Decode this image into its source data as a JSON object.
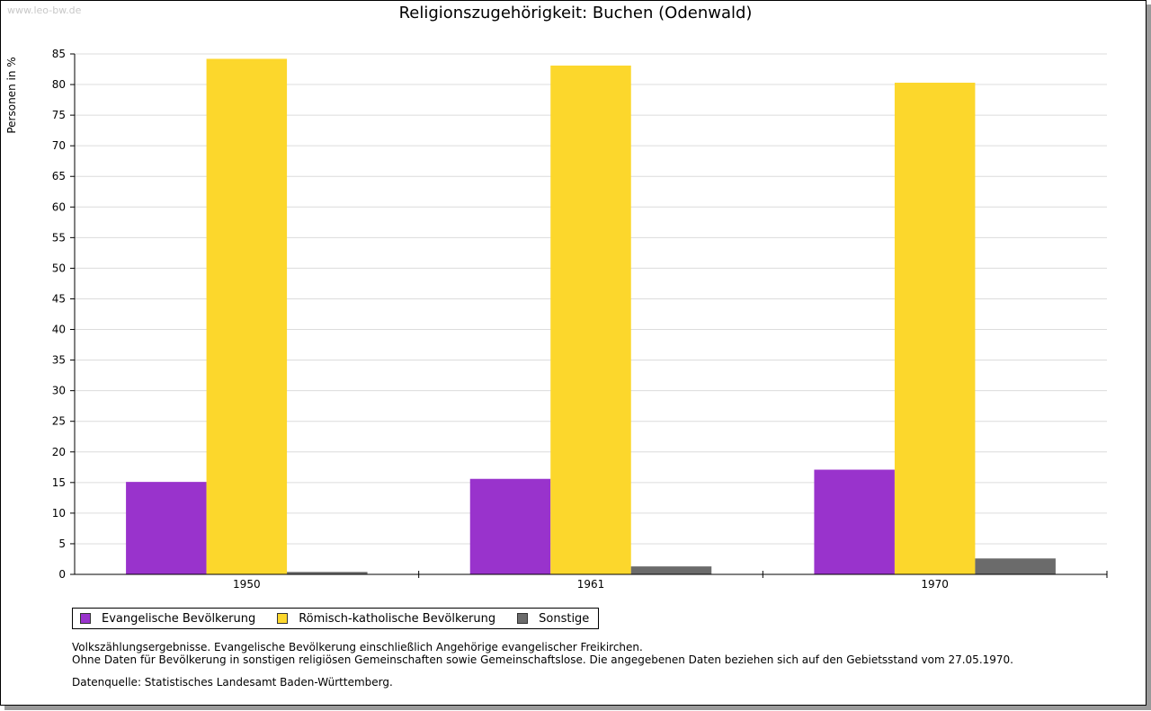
{
  "watermark": "www.leo-bw.de",
  "chart_data": {
    "type": "bar",
    "title": "Religionszugehörigkeit: Buchen (Odenwald)",
    "ylabel": "Personen in %",
    "xlabel": "",
    "ylim": [
      0,
      85
    ],
    "yticks": [
      0,
      5,
      10,
      15,
      20,
      25,
      30,
      35,
      40,
      45,
      50,
      55,
      60,
      65,
      70,
      75,
      80,
      85
    ],
    "grid": true,
    "legend_position": "bottom",
    "categories": [
      "1950",
      "1961",
      "1970"
    ],
    "series": [
      {
        "name": "Evangelische Bevölkerung",
        "color": "#9933cc",
        "values": [
          15.1,
          15.6,
          17.1
        ]
      },
      {
        "name": "Römisch-katholische Bevölkerung",
        "color": "#fcd72c",
        "values": [
          84.2,
          83.1,
          80.3
        ]
      },
      {
        "name": "Sonstige",
        "color": "#6b6b6b",
        "values": [
          0.4,
          1.3,
          2.6
        ]
      }
    ]
  },
  "notes": {
    "line1": "Volkszählungsergebnisse. Evangelische Bevölkerung einschließlich Angehörige evangelischer Freikirchen.",
    "line2": "Ohne Daten für Bevölkerung in sonstigen religiösen Gemeinschaften sowie Gemeinschaftslose. Die angegebenen Daten beziehen sich auf den Gebietsstand vom 27.05.1970."
  },
  "source": "Datenquelle: Statistisches Landesamt Baden-Württemberg."
}
